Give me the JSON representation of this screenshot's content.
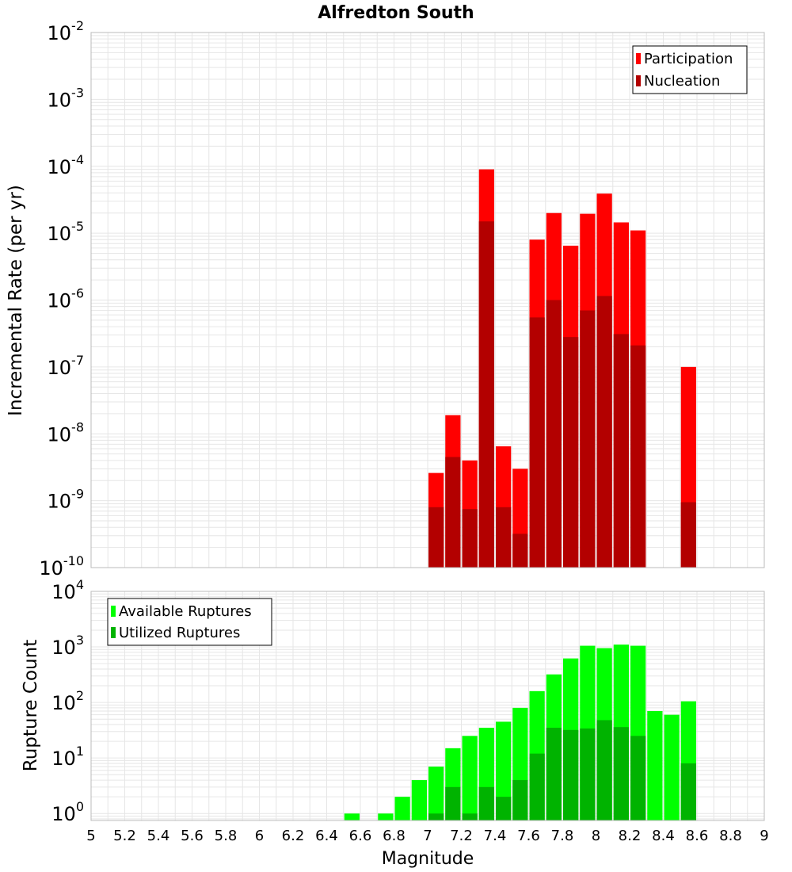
{
  "title": "Alfredton South",
  "colors": {
    "participation": "#ff0000",
    "nucleation": "#b30000",
    "available": "#00ff00",
    "utilized": "#00b300",
    "grid": "#e6e6e6",
    "frame": "#bbbbbb"
  },
  "chart_data": [
    {
      "type": "bar",
      "ylabel": "Incremental Rate (per yr)",
      "y_scale": "log",
      "ylim": [
        1e-10,
        0.01
      ],
      "y_ticks": [
        {
          "base": "10",
          "exp": "-10"
        },
        {
          "base": "10",
          "exp": "-9"
        },
        {
          "base": "10",
          "exp": "-8"
        },
        {
          "base": "10",
          "exp": "-7"
        },
        {
          "base": "10",
          "exp": "-6"
        },
        {
          "base": "10",
          "exp": "-5"
        },
        {
          "base": "10",
          "exp": "-4"
        },
        {
          "base": "10",
          "exp": "-3"
        },
        {
          "base": "10",
          "exp": "-2"
        }
      ],
      "legend_position": "top-right",
      "series": [
        {
          "name": "Participation",
          "x": [
            7.0,
            7.1,
            7.2,
            7.3,
            7.4,
            7.5,
            7.6,
            7.7,
            7.8,
            7.9,
            8.0,
            8.1,
            8.2,
            8.5
          ],
          "values": [
            2.6e-09,
            1.9e-08,
            4e-09,
            9e-05,
            6.5e-09,
            3e-09,
            8e-06,
            2e-05,
            6.5e-06,
            1.95e-05,
            3.9e-05,
            1.45e-05,
            1.1e-05,
            1e-07
          ]
        },
        {
          "name": "Nucleation",
          "x": [
            7.0,
            7.1,
            7.2,
            7.3,
            7.4,
            7.5,
            7.6,
            7.7,
            7.8,
            7.9,
            8.0,
            8.1,
            8.2,
            8.5
          ],
          "values": [
            8e-10,
            4.5e-09,
            7.5e-10,
            1.5e-05,
            8e-10,
            3.2e-10,
            5.5e-07,
            1e-06,
            2.8e-07,
            7e-07,
            1.15e-06,
            3.1e-07,
            2.1e-07,
            9.5e-10
          ]
        }
      ]
    },
    {
      "type": "bar",
      "ylabel": "Rupture Count",
      "xlabel": "Magnitude",
      "y_scale": "log",
      "ylim": [
        0.75,
        10000
      ],
      "y_ticks": [
        {
          "base": "10",
          "exp": "0"
        },
        {
          "base": "10",
          "exp": "1"
        },
        {
          "base": "10",
          "exp": "2"
        },
        {
          "base": "10",
          "exp": "3"
        },
        {
          "base": "10",
          "exp": "4"
        }
      ],
      "xlim": [
        5,
        9
      ],
      "x_ticks": [
        "5",
        "5.2",
        "5.4",
        "5.6",
        "5.8",
        "6",
        "6.2",
        "6.4",
        "6.6",
        "6.8",
        "7",
        "7.2",
        "7.4",
        "7.6",
        "7.8",
        "8",
        "8.2",
        "8.4",
        "8.6",
        "8.8",
        "9"
      ],
      "legend_position": "top-left",
      "series": [
        {
          "name": "Available Ruptures",
          "x": [
            6.5,
            6.7,
            6.8,
            6.9,
            7.0,
            7.1,
            7.2,
            7.3,
            7.4,
            7.5,
            7.6,
            7.7,
            7.8,
            7.9,
            8.0,
            8.1,
            8.2,
            8.3,
            8.4,
            8.5
          ],
          "values": [
            1,
            1,
            2,
            4,
            7,
            15,
            25,
            35,
            45,
            80,
            160,
            320,
            620,
            1050,
            950,
            1100,
            1050,
            70,
            60,
            105
          ]
        },
        {
          "name": "Utilized Ruptures",
          "x": [
            7.0,
            7.1,
            7.2,
            7.3,
            7.4,
            7.5,
            7.6,
            7.7,
            7.8,
            7.9,
            8.0,
            8.1,
            8.2,
            8.5
          ],
          "values": [
            1,
            3,
            1,
            3,
            2,
            4,
            12,
            35,
            32,
            34,
            48,
            36,
            25,
            8
          ]
        }
      ]
    }
  ]
}
